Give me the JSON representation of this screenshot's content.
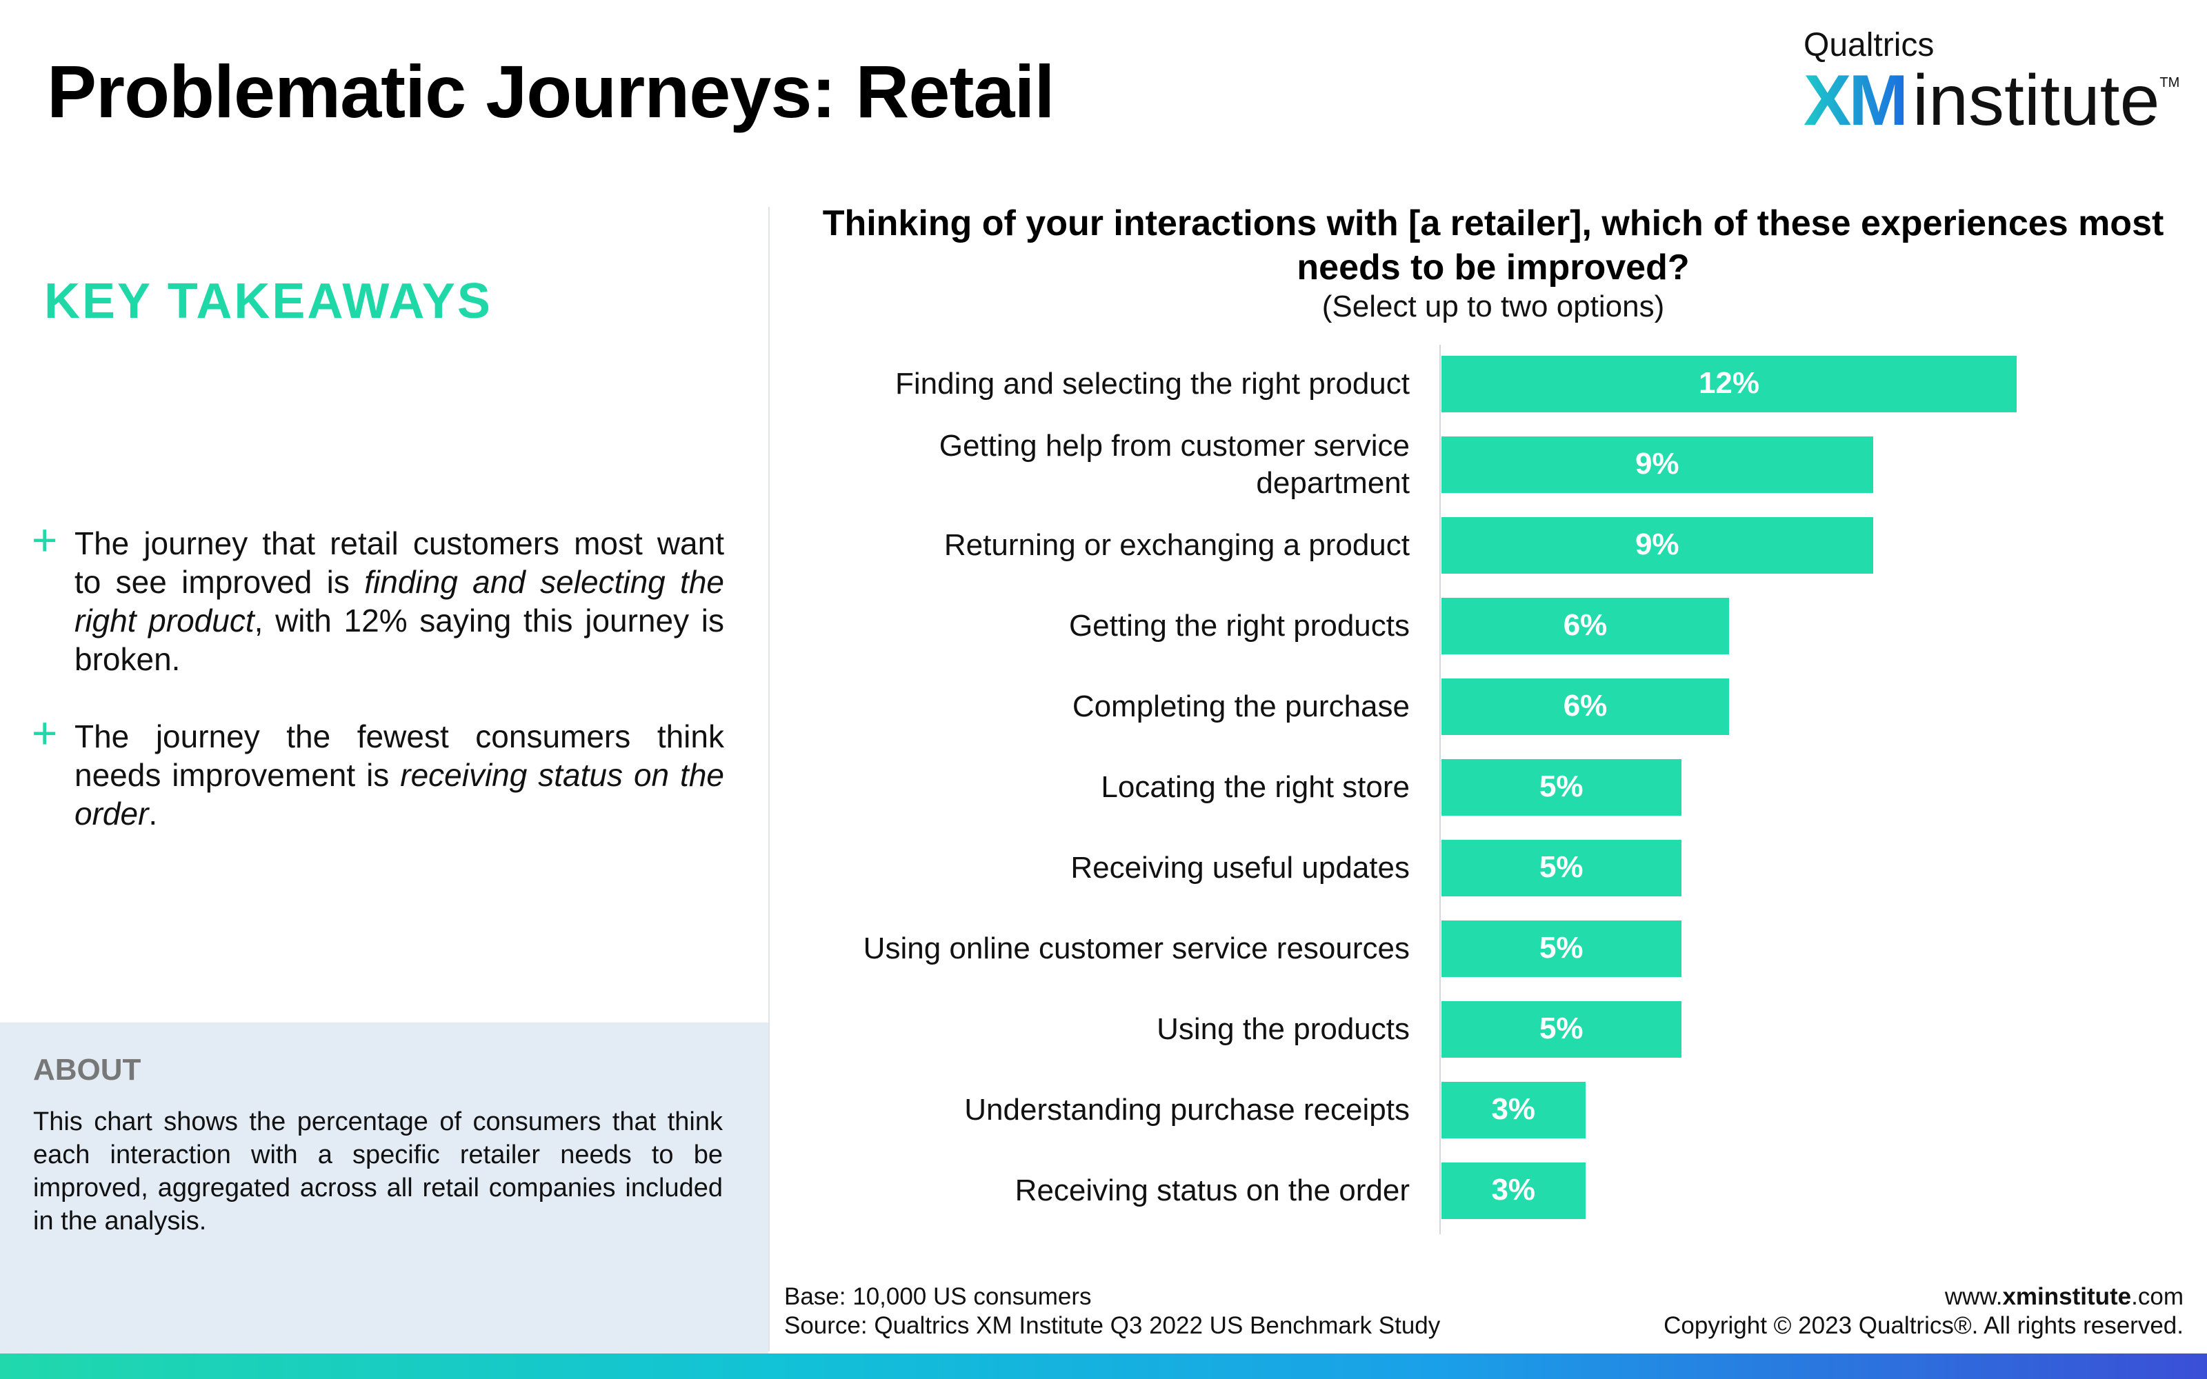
{
  "page": {
    "title": "Problematic Journeys: Retail"
  },
  "logo": {
    "top": "Qualtrics",
    "xm": "XM",
    "institute": "institute",
    "tm": "TM"
  },
  "takeaways": {
    "heading": "KEY TAKEAWAYS",
    "items": [
      {
        "plus": "+",
        "part1": "The journey that retail customers most want to see improved is ",
        "em": "finding and selecting the right product",
        "part2": ", with 12% saying this journey is broken."
      },
      {
        "plus": "+",
        "part1": "The journey the fewest consumers think needs improvement is ",
        "em": "receiving status on the order",
        "part2": "."
      }
    ]
  },
  "about": {
    "title": "ABOUT",
    "body": "This chart shows the percentage of consumers that think each interaction with a specific retailer needs to be improved, aggregated across all retail companies included in the analysis."
  },
  "chart_data": {
    "type": "bar",
    "orientation": "horizontal",
    "title": "Thinking of your interactions with [a retailer], which of these experiences most needs to be improved?",
    "subtitle": "(Select up to two options)",
    "categories": [
      "Finding and selecting the right product",
      "Getting help from customer service department",
      "Returning or exchanging a product",
      "Getting the right products",
      "Completing the purchase",
      "Locating the right store",
      "Receiving useful updates",
      "Using online customer service resources",
      "Using the products",
      "Understanding purchase receipts",
      "Receiving status on the order"
    ],
    "values": [
      12,
      9,
      9,
      6,
      6,
      5,
      5,
      5,
      5,
      3,
      3
    ],
    "value_labels": [
      "12%",
      "9%",
      "9%",
      "6%",
      "6%",
      "5%",
      "5%",
      "5%",
      "5%",
      "3%",
      "3%"
    ],
    "bar_color": "#22dcab",
    "grid": false
  },
  "footer": {
    "base": "Base: 10,000 US consumers",
    "source": "Source: Qualtrics XM Institute Q3 2022 US Benchmark Study",
    "url_prefix": "www.",
    "url_bold": "xminstitute",
    "url_suffix": ".com",
    "copyright": "Copyright © 2023 Qualtrics®. All rights reserved."
  },
  "colors": {
    "accent": "#1fd8a8",
    "about_bg": "#e3ebf4"
  }
}
